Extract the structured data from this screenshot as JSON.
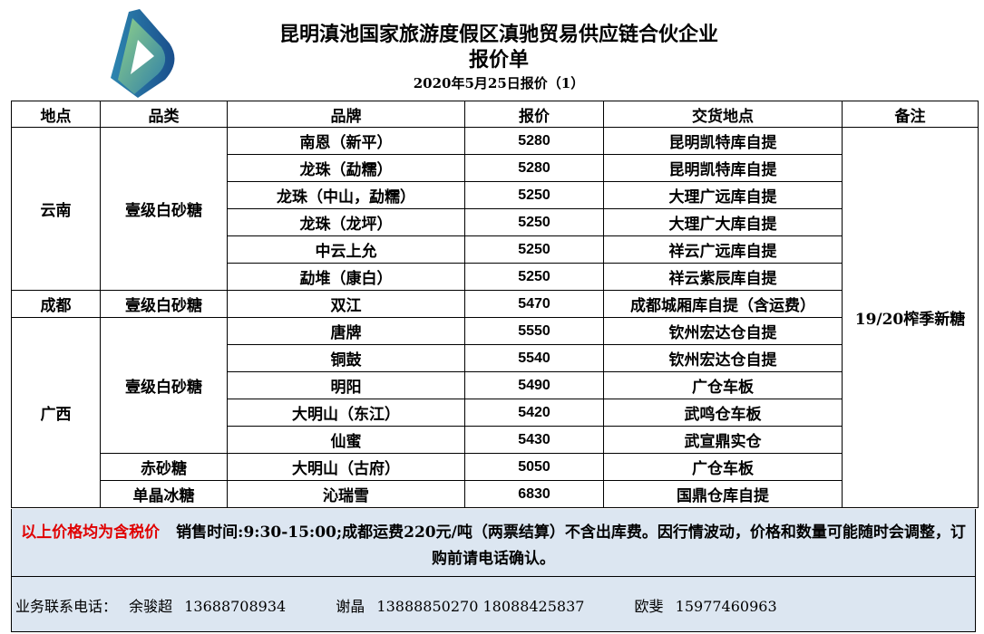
{
  "header": {
    "title": "昆明滇池国家旅游度假区滇驰贸易供应链合伙企业",
    "subtitle": "报价单",
    "date_line": "2020年5月25日报价（1）"
  },
  "table": {
    "columns": [
      "地点",
      "品类",
      "品牌",
      "报价",
      "交货地点",
      "备注"
    ],
    "remark": "19/20榨季新糖",
    "locations": [
      {
        "name": "云南",
        "span": 6
      },
      {
        "name": "成都",
        "span": 1
      },
      {
        "name": "广西",
        "span": 7
      }
    ],
    "categories": [
      {
        "name": "壹级白砂糖",
        "span": 6
      },
      {
        "name": "壹级白砂糖",
        "span": 1
      },
      {
        "name": "壹级白砂糖",
        "span": 5
      },
      {
        "name": "赤砂糖",
        "span": 1
      },
      {
        "name": "单晶冰糖",
        "span": 1
      }
    ],
    "rows": [
      {
        "brand": "南恩（新平）",
        "price": "5280",
        "delivery": "昆明凯特库自提"
      },
      {
        "brand": "龙珠（勐糯）",
        "price": "5280",
        "delivery": "昆明凯特库自提"
      },
      {
        "brand": "龙珠（中山，勐糯）",
        "price": "5250",
        "delivery": "大理广远库自提"
      },
      {
        "brand": "龙珠（龙坪）",
        "price": "5250",
        "delivery": "大理广大库自提"
      },
      {
        "brand": "中云上允",
        "price": "5250",
        "delivery": "祥云广远库自提"
      },
      {
        "brand": "勐堆（康白）",
        "price": "5250",
        "delivery": "祥云紫辰库自提"
      },
      {
        "brand": "双江",
        "price": "5470",
        "delivery": "成都城厢库自提（含运费）"
      },
      {
        "brand": "唐牌",
        "price": "5550",
        "delivery": "钦州宏达仓自提"
      },
      {
        "brand": "铜鼓",
        "price": "5540",
        "delivery": "钦州宏达仓自提"
      },
      {
        "brand": "明阳",
        "price": "5490",
        "delivery": "广仓车板"
      },
      {
        "brand": "大明山（东江）",
        "price": "5420",
        "delivery": "武鸣仓车板"
      },
      {
        "brand": "仙蜜",
        "price": "5430",
        "delivery": "武宣鼎实仓"
      },
      {
        "brand": "大明山（古府）",
        "price": "5050",
        "delivery": "广仓车板"
      },
      {
        "brand": "沁瑞雪",
        "price": "6830",
        "delivery": "国鼎仓库自提"
      }
    ]
  },
  "note": {
    "tax_notice": "以上价格均为含税价",
    "text": "销售时间:9:30-15:00;成都运费220元/吨（两票结算）不含出库费。因行情波动，价格和数量可能随时会调整，订购前请电话确认。",
    "tax_notice_color": "#e00000"
  },
  "contact": {
    "label": "业务联系电话：",
    "people": [
      {
        "name": "余骏超",
        "phones": "13688708934"
      },
      {
        "name": "谢晶",
        "phones": "13888850270 18088425837"
      },
      {
        "name": "欧斐",
        "phones": "15977460963"
      }
    ]
  },
  "colors": {
    "footer_bg": "#dce6f1",
    "logo_blue": "#1f5f9e",
    "logo_green": "#8ccf8c"
  }
}
